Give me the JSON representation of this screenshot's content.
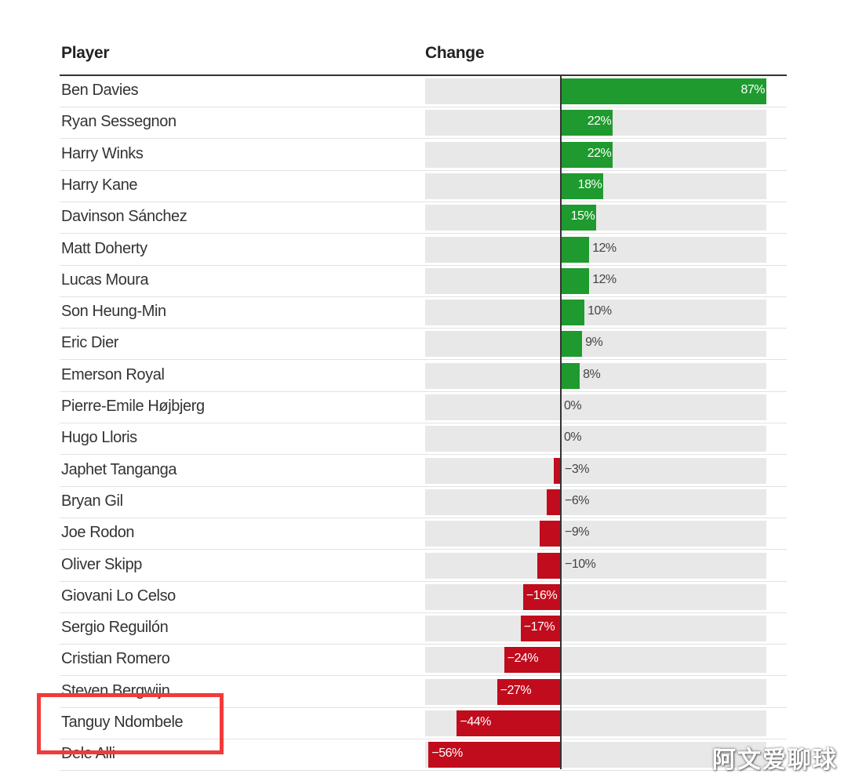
{
  "headers": {
    "player": "Player",
    "change": "Change"
  },
  "watermark": "阿文爱聊球",
  "colors": {
    "positive": "#1e9a2e",
    "negative": "#c00c1c",
    "track": "#e8e8e8",
    "highlight": "#f23a3a"
  },
  "chart_data": {
    "type": "bar",
    "orientation": "horizontal",
    "categories": [
      "Ben Davies",
      "Ryan Sessegnon",
      "Harry Winks",
      "Harry Kane",
      "Davinson Sánchez",
      "Matt Doherty",
      "Lucas Moura",
      "Son Heung-Min",
      "Eric Dier",
      "Emerson Royal",
      "Pierre-Emile Højbjerg",
      "Hugo Lloris",
      "Japhet Tanganga",
      "Bryan Gil",
      "Joe Rodon",
      "Oliver Skipp",
      "Giovani Lo Celso",
      "Sergio Reguilón",
      "Cristian Romero",
      "Steven Bergwijn",
      "Tanguy Ndombele",
      "Dele Alli"
    ],
    "values": [
      87,
      22,
      22,
      18,
      15,
      12,
      12,
      10,
      9,
      8,
      0,
      0,
      -3,
      -6,
      -9,
      -10,
      -16,
      -17,
      -24,
      -27,
      -44,
      -56
    ],
    "labels": [
      "87%",
      "22%",
      "22%",
      "18%",
      "15%",
      "12%",
      "12%",
      "10%",
      "9%",
      "8%",
      "0%",
      "0%",
      "−3%",
      "−6%",
      "−9%",
      "−10%",
      "−16%",
      "−17%",
      "−24%",
      "−27%",
      "−44%",
      "−56%"
    ],
    "xlim": [
      -56,
      87
    ],
    "highlighted": "Tanguy Ndombele"
  }
}
